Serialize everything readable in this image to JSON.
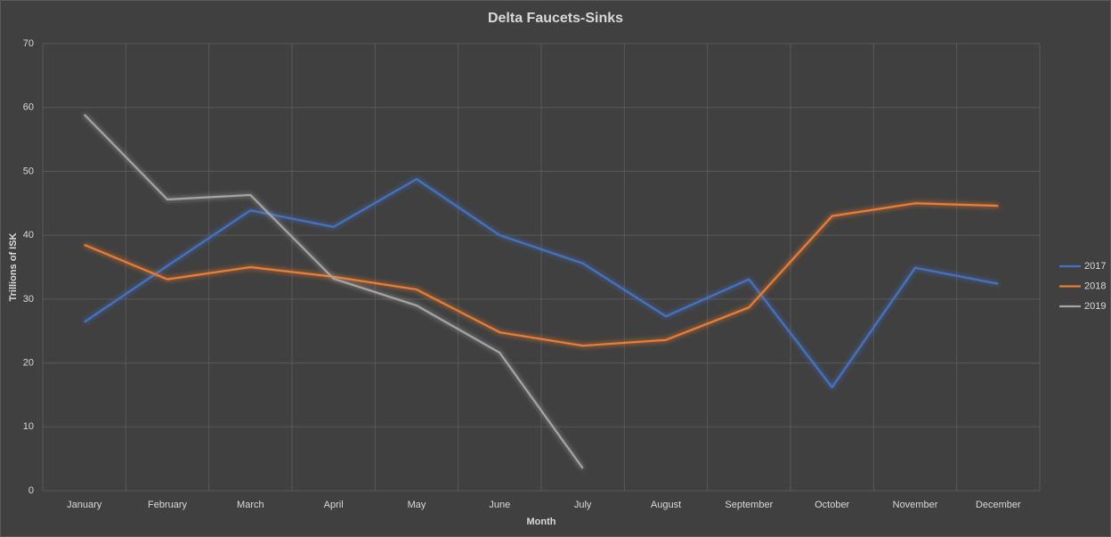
{
  "chart_data": {
    "type": "line",
    "title": "Delta Faucets-Sinks",
    "x_label": "Month",
    "y_label": "Trillions of ISK",
    "categories": [
      "January",
      "February",
      "March",
      "April",
      "May",
      "June",
      "July",
      "August",
      "September",
      "October",
      "November",
      "December"
    ],
    "series": [
      {
        "name": "2017",
        "color": "#4472c4",
        "values": [
          26.4,
          35.2,
          43.9,
          41.3,
          48.8,
          40,
          35.6,
          27.3,
          33.1,
          16.2,
          34.9,
          32.4
        ]
      },
      {
        "name": "2018",
        "color": "#ed7d31",
        "values": [
          38.5,
          33.1,
          35,
          33.5,
          31.5,
          24.8,
          22.7,
          23.6,
          28.7,
          43,
          45,
          44.6
        ]
      },
      {
        "name": "2019",
        "color": "#a5a5a5",
        "values": [
          58.9,
          45.6,
          46.3,
          33.2,
          29,
          21.6,
          3.5,
          null,
          null,
          null,
          null,
          null
        ]
      }
    ],
    "ylim": [
      0,
      70
    ],
    "yticks": [
      0,
      10,
      20,
      30,
      40,
      50,
      60,
      70
    ],
    "grid": true,
    "legend": "right"
  }
}
